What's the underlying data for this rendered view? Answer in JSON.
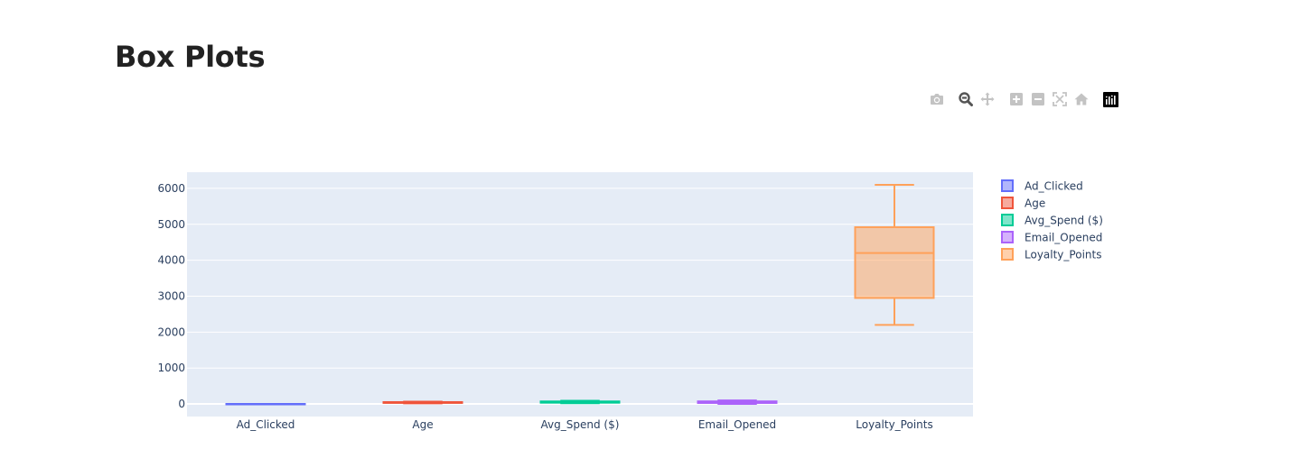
{
  "page": {
    "title": "Box Plots"
  },
  "modebar": {
    "buttons": [
      {
        "name": "camera-icon",
        "title": "Download plot as a png",
        "active": false
      },
      {
        "name": "zoom-icon",
        "title": "Zoom",
        "active": true
      },
      {
        "name": "pan-icon",
        "title": "Pan",
        "active": false
      },
      {
        "name": "zoom-in-icon",
        "title": "Zoom in",
        "active": false
      },
      {
        "name": "zoom-out-icon",
        "title": "Zoom out",
        "active": false
      },
      {
        "name": "autoscale-icon",
        "title": "Autoscale",
        "active": false
      },
      {
        "name": "reset-axes-icon",
        "title": "Reset axes",
        "active": false
      },
      {
        "name": "plotly-logo-icon",
        "title": "Produced with Plotly",
        "active": false
      }
    ]
  },
  "chart_data": {
    "type": "box",
    "title": "",
    "xlabel": "",
    "ylabel": "",
    "ylim": [
      -350,
      6450
    ],
    "yticks": [
      0,
      1000,
      2000,
      3000,
      4000,
      5000,
      6000
    ],
    "grid": true,
    "legend_position": "right",
    "background": "#e5ecf6",
    "series": [
      {
        "name": "Ad_Clicked",
        "color": "#636efa",
        "min": 0,
        "q1": 0,
        "median": 1,
        "q3": 1,
        "max": 1
      },
      {
        "name": "Age",
        "color": "#ef553b",
        "min": 18,
        "q1": 29,
        "median": 41,
        "q3": 52,
        "max": 64
      },
      {
        "name": "Avg_Spend ($)",
        "color": "#00cc96",
        "min": 20,
        "q1": 35,
        "median": 55,
        "q3": 70,
        "max": 90
      },
      {
        "name": "Email_Opened",
        "color": "#ab63fa",
        "min": 0,
        "q1": 28,
        "median": 50,
        "q3": 72,
        "max": 100
      },
      {
        "name": "Loyalty_Points",
        "color": "#ffa15a",
        "min": 2200,
        "q1": 2950,
        "median": 4200,
        "q3": 4920,
        "max": 6100
      }
    ]
  }
}
